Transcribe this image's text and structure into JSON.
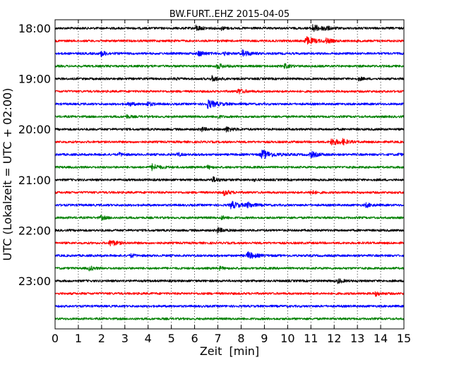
{
  "chart_data": {
    "type": "line",
    "title": "BW.FURT..EHZ 2015-04-05",
    "xlabel": "Zeit  [min]",
    "ylabel": "UTC (Lokalzeit = UTC + 02:00)",
    "xlim": [
      0,
      15
    ],
    "x_ticks": [
      "0",
      "1",
      "2",
      "3",
      "4",
      "5",
      "6",
      "7",
      "8",
      "9",
      "10",
      "11",
      "12",
      "13",
      "14",
      "15"
    ],
    "y_tick_labels": [
      "18:00",
      "19:00",
      "20:00",
      "21:00",
      "22:00",
      "23:00"
    ],
    "grid": "vertical dotted",
    "trace_colors": [
      "#000000",
      "#ff0000",
      "#0000ff",
      "#008000"
    ],
    "traces": [
      {
        "start": "18:00",
        "bursts": [
          [
            6.1,
            0.5
          ],
          [
            7.2,
            0.3
          ],
          [
            11.1,
            0.7
          ],
          [
            11.6,
            0.4
          ]
        ]
      },
      {
        "start": "18:15",
        "bursts": [
          [
            10.8,
            0.8
          ],
          [
            11.7,
            0.4
          ]
        ]
      },
      {
        "start": "18:30",
        "bursts": [
          [
            2.0,
            0.5
          ],
          [
            6.2,
            0.5
          ],
          [
            7.3,
            0.3
          ],
          [
            8.1,
            0.6
          ]
        ]
      },
      {
        "start": "18:45",
        "bursts": [
          [
            7.0,
            0.5
          ],
          [
            9.9,
            0.4
          ]
        ]
      },
      {
        "start": "19:00",
        "bursts": [
          [
            5.2,
            0.2
          ],
          [
            6.8,
            0.5
          ],
          [
            13.1,
            0.3
          ]
        ]
      },
      {
        "start": "19:15",
        "bursts": [
          [
            7.9,
            0.5
          ]
        ]
      },
      {
        "start": "19:30",
        "bursts": [
          [
            3.2,
            0.4
          ],
          [
            4.0,
            0.4
          ],
          [
            6.6,
            0.8
          ]
        ]
      },
      {
        "start": "19:45",
        "bursts": [
          [
            3.1,
            0.3
          ],
          [
            7.0,
            0.3
          ]
        ]
      },
      {
        "start": "20:00",
        "bursts": [
          [
            6.3,
            0.4
          ],
          [
            7.4,
            0.5
          ]
        ]
      },
      {
        "start": "20:15",
        "bursts": [
          [
            11.9,
            0.7
          ],
          [
            12.4,
            0.4
          ]
        ]
      },
      {
        "start": "20:30",
        "bursts": [
          [
            2.8,
            0.3
          ],
          [
            5.3,
            0.3
          ],
          [
            8.9,
            0.9
          ],
          [
            11.0,
            0.6
          ],
          [
            14.8,
            0.2
          ]
        ]
      },
      {
        "start": "20:45",
        "bursts": [
          [
            4.2,
            0.6
          ],
          [
            6.6,
            0.3
          ]
        ]
      },
      {
        "start": "21:00",
        "bursts": [
          [
            6.8,
            0.5
          ],
          [
            8.6,
            0.2
          ]
        ]
      },
      {
        "start": "21:15",
        "bursts": [
          [
            7.3,
            0.5
          ],
          [
            11.0,
            0.4
          ]
        ]
      },
      {
        "start": "21:30",
        "bursts": [
          [
            7.6,
            0.7
          ],
          [
            8.3,
            0.5
          ],
          [
            13.4,
            0.4
          ]
        ]
      },
      {
        "start": "21:45",
        "bursts": [
          [
            2.0,
            0.4
          ],
          [
            7.2,
            0.3
          ]
        ]
      },
      {
        "start": "22:00",
        "bursts": [
          [
            7.0,
            0.5
          ]
        ]
      },
      {
        "start": "22:15",
        "bursts": [
          [
            2.4,
            0.6
          ]
        ]
      },
      {
        "start": "22:30",
        "bursts": [
          [
            3.3,
            0.3
          ],
          [
            8.3,
            0.7
          ]
        ]
      },
      {
        "start": "22:45",
        "bursts": [
          [
            1.5,
            0.4
          ],
          [
            7.1,
            0.3
          ]
        ]
      },
      {
        "start": "23:00",
        "bursts": [
          [
            12.2,
            0.4
          ]
        ]
      },
      {
        "start": "23:15",
        "bursts": [
          [
            13.8,
            0.4
          ]
        ]
      },
      {
        "start": "23:30",
        "bursts": []
      },
      {
        "start": "23:45",
        "bursts": []
      }
    ]
  }
}
